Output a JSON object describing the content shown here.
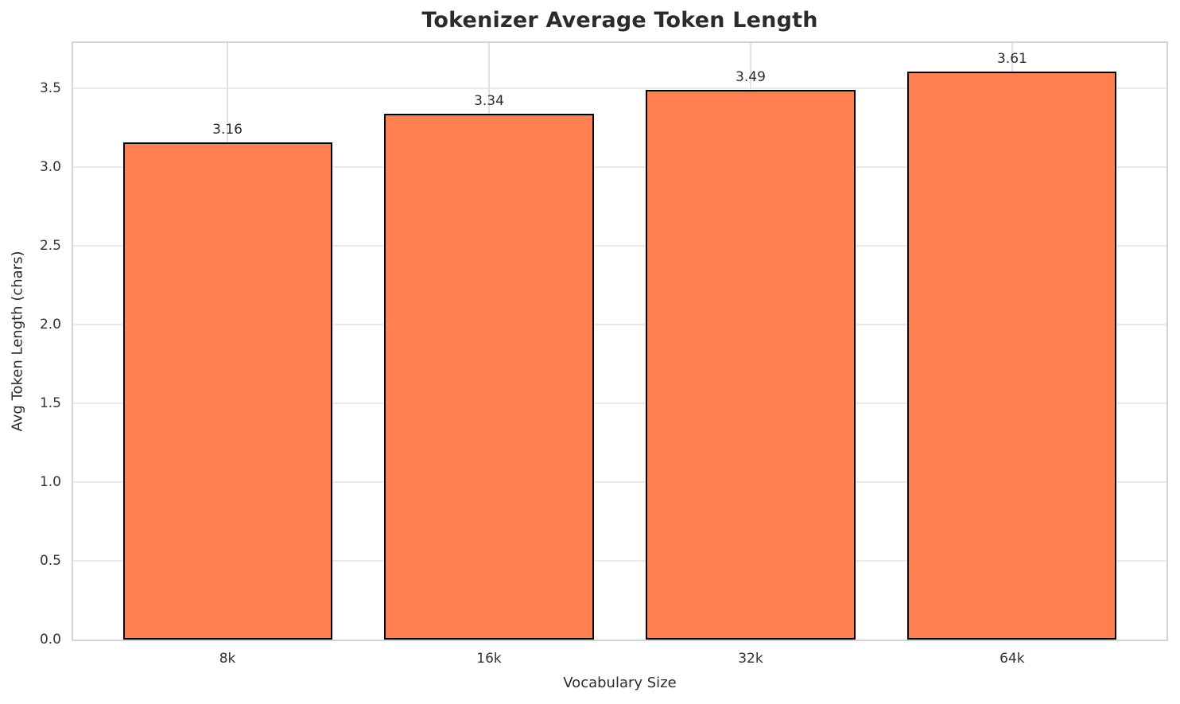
{
  "chart_data": {
    "type": "bar",
    "title": "Tokenizer Average Token Length",
    "xlabel": "Vocabulary Size",
    "ylabel": "Avg Token Length (chars)",
    "categories": [
      "8k",
      "16k",
      "32k",
      "64k"
    ],
    "values": [
      3.16,
      3.34,
      3.49,
      3.61
    ],
    "value_labels": [
      "3.16",
      "3.34",
      "3.49",
      "3.61"
    ],
    "ylim": [
      0,
      3.79
    ],
    "yticks": [
      0.0,
      0.5,
      1.0,
      1.5,
      2.0,
      2.5,
      3.0,
      3.5
    ],
    "ytick_labels": [
      "0.0",
      "0.5",
      "1.0",
      "1.5",
      "2.0",
      "2.5",
      "3.0",
      "3.5"
    ],
    "grid": true,
    "legend": "none",
    "bar_color": "#FF7F50",
    "bar_edge_color": "#000000",
    "background_color": "#ffffff",
    "grid_color": "#e8e8e8",
    "text_color": "#2b2b2b"
  }
}
